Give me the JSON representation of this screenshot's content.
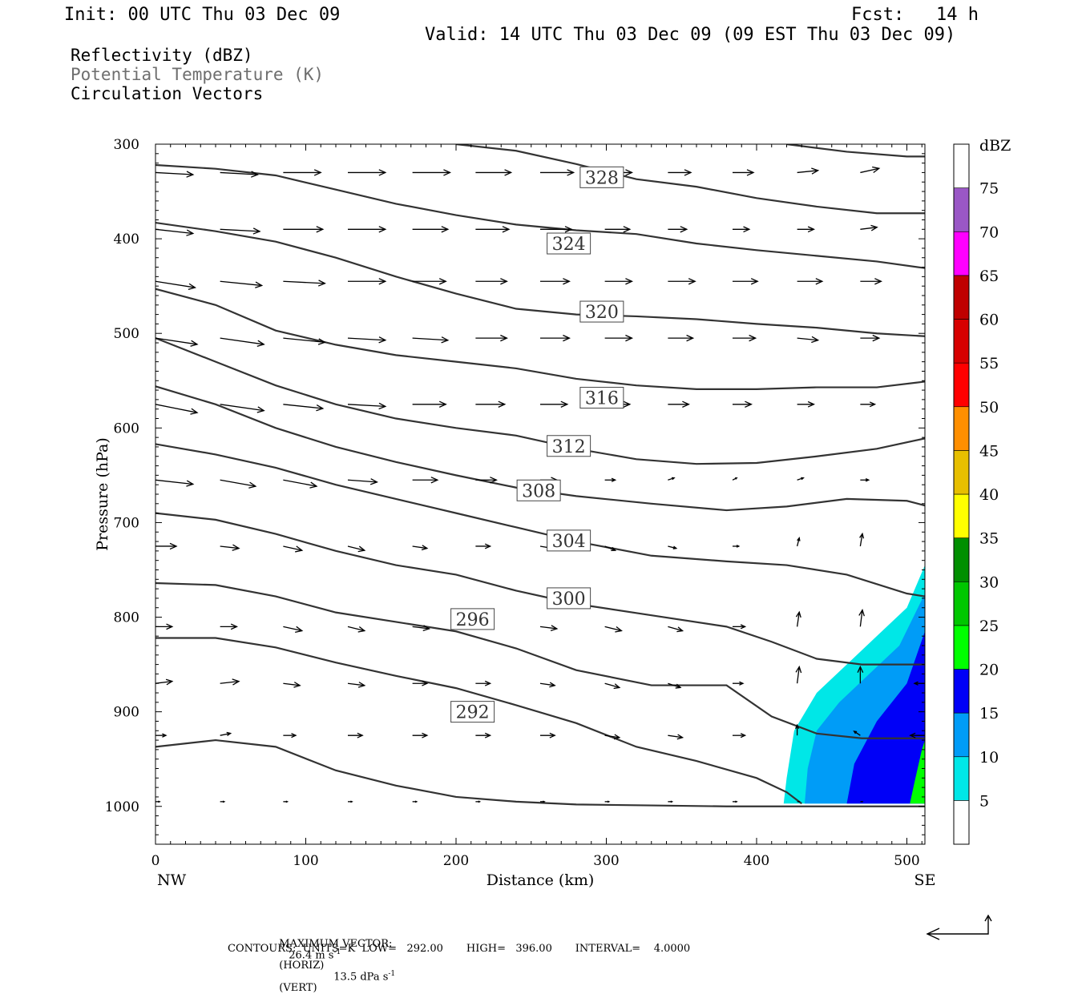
{
  "header": {
    "init": "Init: 00 UTC Thu 03 Dec 09",
    "fcst": "Fcst:   14 h",
    "valid": "Valid: 14 UTC Thu 03 Dec 09 (09 EST Thu 03 Dec 09)"
  },
  "legend": {
    "line1": "Reflectivity (dBZ)",
    "line2": "Potential Temperature (K)",
    "line3": "Circulation Vectors"
  },
  "footer": {
    "max_vector_label": "MAXIMUM VECTOR:",
    "max_vector_h": "26.4 m s",
    "max_vector_h_exp": "-1",
    "max_vector_h_tail": "(HORIZ)",
    "max_vector_v": "13.5 dPa s",
    "max_vector_v_exp": "-1",
    "max_vector_v_tail": "(VERT)",
    "contours": "CONTOURS:  UNITS=K  LOW=   292.00       HIGH=   396.00       INTERVAL=    4.0000"
  },
  "colors": {
    "contour": "#333333",
    "axis": "#000000"
  },
  "chart_data": {
    "type": "contour",
    "xlabel": "Distance (km)",
    "ylabel": "Pressure (hPa)",
    "xlim": [
      0,
      512
    ],
    "ylim": [
      1040,
      300
    ],
    "x_ticks": [
      0,
      100,
      200,
      300,
      400,
      500
    ],
    "y_ticks": [
      300,
      400,
      500,
      600,
      700,
      800,
      900,
      1000
    ],
    "x_end_labels": {
      "left": "NW",
      "right": "SE"
    },
    "colorbar": {
      "label": "dBZ",
      "levels": [
        5,
        10,
        15,
        20,
        25,
        30,
        35,
        40,
        45,
        50,
        55,
        60,
        65,
        70,
        75
      ],
      "colors": [
        "#ffffff",
        "#00e7e7",
        "#009cf7",
        "#0000f7",
        "#00ff00",
        "#00c700",
        "#008f00",
        "#ffff00",
        "#e7bf00",
        "#ff8f00",
        "#ff0000",
        "#d70000",
        "#bf0000",
        "#ff00ff",
        "#9a57c6",
        "#ffffff"
      ]
    },
    "theta_contours": [
      {
        "label": "292",
        "label_at": [
          211,
          900
        ],
        "points": [
          [
            0,
            822
          ],
          [
            40,
            822
          ],
          [
            80,
            832
          ],
          [
            120,
            848
          ],
          [
            160,
            862
          ],
          [
            200,
            875
          ],
          [
            240,
            893
          ],
          [
            280,
            912
          ],
          [
            320,
            937
          ],
          [
            360,
            952
          ],
          [
            400,
            970
          ],
          [
            420,
            985
          ],
          [
            430,
            997
          ]
        ]
      },
      {
        "label": "296",
        "label_at": [
          211,
          802
        ],
        "points": [
          [
            0,
            764
          ],
          [
            40,
            766
          ],
          [
            80,
            778
          ],
          [
            120,
            795
          ],
          [
            160,
            805
          ],
          [
            200,
            815
          ],
          [
            240,
            833
          ],
          [
            280,
            856
          ],
          [
            330,
            872
          ],
          [
            380,
            872
          ],
          [
            410,
            905
          ],
          [
            440,
            923
          ],
          [
            470,
            928
          ],
          [
            512,
            928
          ]
        ]
      },
      {
        "label": "300",
        "label_at": [
          275,
          780
        ],
        "points": [
          [
            0,
            690
          ],
          [
            40,
            697
          ],
          [
            80,
            712
          ],
          [
            120,
            730
          ],
          [
            160,
            745
          ],
          [
            200,
            755
          ],
          [
            240,
            772
          ],
          [
            280,
            786
          ],
          [
            330,
            798
          ],
          [
            380,
            810
          ],
          [
            410,
            826
          ],
          [
            440,
            844
          ],
          [
            470,
            850
          ],
          [
            512,
            850
          ]
        ]
      },
      {
        "label": "304",
        "label_at": [
          275,
          719
        ],
        "points": [
          [
            0,
            617
          ],
          [
            40,
            628
          ],
          [
            80,
            642
          ],
          [
            120,
            660
          ],
          [
            160,
            675
          ],
          [
            200,
            690
          ],
          [
            240,
            705
          ],
          [
            280,
            720
          ],
          [
            330,
            735
          ],
          [
            380,
            741
          ],
          [
            420,
            745
          ],
          [
            460,
            755
          ],
          [
            500,
            775
          ],
          [
            512,
            778
          ]
        ]
      },
      {
        "label": "308",
        "label_at": [
          255,
          666
        ],
        "points": [
          [
            0,
            556
          ],
          [
            40,
            575
          ],
          [
            80,
            600
          ],
          [
            120,
            620
          ],
          [
            160,
            636
          ],
          [
            200,
            650
          ],
          [
            240,
            663
          ],
          [
            280,
            672
          ],
          [
            330,
            680
          ],
          [
            380,
            687
          ],
          [
            420,
            683
          ],
          [
            460,
            675
          ],
          [
            500,
            677
          ],
          [
            512,
            682
          ]
        ]
      },
      {
        "label": "312",
        "label_at": [
          275,
          619
        ],
        "points": [
          [
            0,
            505
          ],
          [
            40,
            530
          ],
          [
            80,
            555
          ],
          [
            120,
            575
          ],
          [
            160,
            590
          ],
          [
            200,
            600
          ],
          [
            240,
            608
          ],
          [
            280,
            622
          ],
          [
            320,
            633
          ],
          [
            360,
            638
          ],
          [
            400,
            637
          ],
          [
            440,
            630
          ],
          [
            480,
            622
          ],
          [
            512,
            611
          ]
        ]
      },
      {
        "label": "316",
        "label_at": [
          297,
          568
        ],
        "points": [
          [
            0,
            453
          ],
          [
            40,
            470
          ],
          [
            80,
            497
          ],
          [
            120,
            512
          ],
          [
            160,
            523
          ],
          [
            200,
            530
          ],
          [
            240,
            537
          ],
          [
            280,
            548
          ],
          [
            320,
            555
          ],
          [
            360,
            559
          ],
          [
            400,
            559
          ],
          [
            440,
            557
          ],
          [
            480,
            557
          ],
          [
            512,
            551
          ]
        ]
      },
      {
        "label": "320",
        "label_at": [
          297,
          477
        ],
        "points": [
          [
            0,
            383
          ],
          [
            40,
            392
          ],
          [
            80,
            403
          ],
          [
            120,
            420
          ],
          [
            160,
            440
          ],
          [
            200,
            458
          ],
          [
            240,
            474
          ],
          [
            280,
            480
          ],
          [
            320,
            482
          ],
          [
            360,
            485
          ],
          [
            400,
            490
          ],
          [
            440,
            494
          ],
          [
            480,
            500
          ],
          [
            512,
            503
          ]
        ]
      },
      {
        "label": "324",
        "label_at": [
          275,
          405
        ],
        "points": [
          [
            0,
            322
          ],
          [
            40,
            326
          ],
          [
            80,
            333
          ],
          [
            120,
            348
          ],
          [
            160,
            363
          ],
          [
            200,
            375
          ],
          [
            240,
            385
          ],
          [
            280,
            391
          ],
          [
            320,
            395
          ],
          [
            360,
            405
          ],
          [
            400,
            412
          ],
          [
            440,
            418
          ],
          [
            480,
            424
          ],
          [
            512,
            431
          ]
        ]
      },
      {
        "label": "328",
        "label_at": [
          297,
          335
        ],
        "points": [
          [
            200,
            300
          ],
          [
            240,
            307
          ],
          [
            280,
            321
          ],
          [
            320,
            337
          ],
          [
            360,
            345
          ],
          [
            400,
            357
          ],
          [
            440,
            366
          ],
          [
            480,
            373
          ],
          [
            512,
            373
          ]
        ]
      },
      {
        "label": "",
        "label_at": null,
        "points": [
          [
            420,
            300
          ],
          [
            460,
            308
          ],
          [
            500,
            313
          ],
          [
            512,
            313
          ]
        ]
      },
      {
        "label": "",
        "label_at": null,
        "points": [
          [
            0,
            937
          ],
          [
            40,
            930
          ],
          [
            80,
            937
          ],
          [
            120,
            962
          ],
          [
            160,
            978
          ],
          [
            200,
            990
          ],
          [
            240,
            995
          ],
          [
            280,
            998
          ],
          [
            330,
            999
          ],
          [
            380,
            1000
          ],
          [
            430,
            1000
          ],
          [
            480,
            1000
          ],
          [
            512,
            1000
          ]
        ]
      }
    ],
    "reflectivity_regions": [
      {
        "dbz": 5,
        "color": "#00e7e7",
        "points": [
          [
            418,
            997
          ],
          [
            420,
            970
          ],
          [
            425,
            920
          ],
          [
            440,
            880
          ],
          [
            460,
            850
          ],
          [
            480,
            820
          ],
          [
            500,
            790
          ],
          [
            512,
            745
          ],
          [
            512,
            997
          ]
        ]
      },
      {
        "dbz": 10,
        "color": "#009cf7",
        "points": [
          [
            432,
            997
          ],
          [
            434,
            960
          ],
          [
            440,
            920
          ],
          [
            455,
            890
          ],
          [
            475,
            860
          ],
          [
            495,
            830
          ],
          [
            512,
            775
          ],
          [
            512,
            997
          ]
        ]
      },
      {
        "dbz": 15,
        "color": "#0000f7",
        "points": [
          [
            460,
            997
          ],
          [
            465,
            955
          ],
          [
            480,
            910
          ],
          [
            500,
            870
          ],
          [
            512,
            815
          ],
          [
            512,
            997
          ]
        ]
      },
      {
        "dbz": 20,
        "color": "#00ff00",
        "points": [
          [
            502,
            997
          ],
          [
            505,
            975
          ],
          [
            510,
            940
          ],
          [
            512,
            930
          ],
          [
            512,
            997
          ]
        ]
      }
    ],
    "vectors": {
      "x": [
        0,
        43,
        85,
        128,
        171,
        213,
        256,
        299,
        341,
        384,
        427,
        469,
        512
      ],
      "p": [
        330,
        390,
        445,
        505,
        575,
        655,
        725,
        810,
        870,
        925,
        995
      ],
      "u": [
        [
          18,
          18,
          18,
          18,
          18,
          17,
          16,
          13,
          11,
          10,
          10,
          9,
          8
        ],
        [
          18,
          19,
          19,
          18,
          17,
          16,
          15,
          12,
          9,
          8,
          8,
          8,
          8
        ],
        [
          19,
          20,
          20,
          18,
          16,
          15,
          14,
          13,
          13,
          12,
          12,
          10,
          8
        ],
        [
          20,
          21,
          20,
          18,
          17,
          15,
          14,
          13,
          12,
          11,
          10,
          9,
          8
        ],
        [
          20,
          21,
          19,
          18,
          16,
          14,
          13,
          12,
          10,
          9,
          8,
          7,
          7
        ],
        [
          18,
          17,
          16,
          14,
          12,
          10,
          8,
          5,
          3,
          2,
          3,
          4,
          4
        ],
        [
          10,
          9,
          9,
          8,
          7,
          7,
          6,
          5,
          4,
          3,
          1,
          1,
          1
        ],
        [
          8,
          8,
          9,
          8,
          8,
          8,
          8,
          8,
          7,
          6,
          1,
          1,
          3
        ],
        [
          8,
          9,
          8,
          8,
          7,
          7,
          7,
          7,
          6,
          5,
          1,
          0,
          -5
        ],
        [
          5,
          5,
          6,
          7,
          7,
          7,
          7,
          7,
          7,
          6,
          0,
          -3,
          -7
        ],
        [
          2,
          2,
          2,
          2,
          2,
          2,
          2,
          2,
          2,
          2,
          1,
          1,
          1
        ]
      ],
      "w": [
        [
          -1,
          -1,
          0,
          0,
          0,
          0,
          0,
          0,
          0,
          0,
          1,
          2,
          3
        ],
        [
          -2,
          -1,
          0,
          0,
          0,
          0,
          0,
          0,
          0,
          0,
          0,
          1,
          2
        ],
        [
          -3,
          -2,
          -1,
          0,
          0,
          0,
          0,
          0,
          0,
          0,
          0,
          0,
          1
        ],
        [
          -3,
          -3,
          -2,
          -1,
          -1,
          0,
          0,
          0,
          0,
          0,
          -1,
          0,
          0
        ],
        [
          -4,
          -3,
          -2,
          -1,
          0,
          0,
          0,
          0,
          0,
          0,
          0,
          0,
          0
        ],
        [
          -2,
          -3,
          -3,
          -1,
          0,
          0,
          0,
          0,
          1,
          1,
          1,
          0,
          0
        ],
        [
          0,
          -1,
          -2,
          -2,
          -1,
          0,
          -1,
          -2,
          -1,
          0,
          4,
          6,
          4
        ],
        [
          0,
          0,
          -2,
          -2,
          -1,
          0,
          -1,
          -2,
          -2,
          0,
          7,
          8,
          8
        ],
        [
          1,
          1,
          -1,
          -1,
          0,
          0,
          -1,
          -2,
          -2,
          0,
          8,
          8,
          0
        ],
        [
          0,
          1,
          0,
          0,
          0,
          0,
          0,
          -1,
          -1,
          0,
          5,
          2,
          0
        ],
        [
          0,
          0,
          0,
          0,
          0,
          0,
          0,
          0,
          0,
          0,
          0,
          0,
          0
        ]
      ]
    },
    "reference_vector": {
      "horiz": 26.4,
      "vert": 13.5
    }
  }
}
